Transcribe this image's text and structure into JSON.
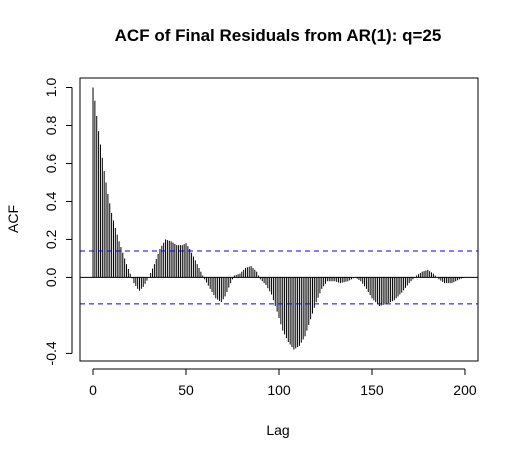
{
  "chart_data": {
    "type": "bar",
    "title": "ACF of Final Residuals from AR(1): q=25",
    "xlabel": "Lag",
    "ylabel": "ACF",
    "xlim": [
      -7,
      207
    ],
    "ylim": [
      -0.44,
      1.05
    ],
    "x_ticks": [
      0,
      50,
      100,
      150,
      200
    ],
    "y_ticks": [
      -0.4,
      0.0,
      0.2,
      0.4,
      0.6,
      0.8,
      1.0
    ],
    "y_tick_labels": [
      "-0.4",
      "0.0",
      "0.2",
      "0.4",
      "0.6",
      "0.8",
      "1.0"
    ],
    "confidence_band": 0.139,
    "confidence_color": "#0000ff",
    "bar_color": "#000000",
    "zero_line": true,
    "grid": false,
    "lag_max": 200,
    "acf_shape": [
      [
        0,
        1.0
      ],
      [
        1,
        0.93
      ],
      [
        2,
        0.85
      ],
      [
        3,
        0.77
      ],
      [
        4,
        0.7
      ],
      [
        5,
        0.63
      ],
      [
        6,
        0.56
      ],
      [
        7,
        0.5
      ],
      [
        8,
        0.44
      ],
      [
        9,
        0.39
      ],
      [
        10,
        0.34
      ],
      [
        12,
        0.26
      ],
      [
        14,
        0.19
      ],
      [
        16,
        0.13
      ],
      [
        18,
        0.07
      ],
      [
        20,
        0.02
      ],
      [
        22,
        -0.03
      ],
      [
        24,
        -0.06
      ],
      [
        25,
        -0.07
      ],
      [
        27,
        -0.05
      ],
      [
        30,
        0.0
      ],
      [
        33,
        0.07
      ],
      [
        36,
        0.15
      ],
      [
        39,
        0.2
      ],
      [
        42,
        0.19
      ],
      [
        45,
        0.17
      ],
      [
        48,
        0.17
      ],
      [
        50,
        0.18
      ],
      [
        52,
        0.15
      ],
      [
        55,
        0.09
      ],
      [
        58,
        0.03
      ],
      [
        60,
        -0.01
      ],
      [
        63,
        -0.06
      ],
      [
        66,
        -0.11
      ],
      [
        69,
        -0.13
      ],
      [
        71,
        -0.1
      ],
      [
        74,
        -0.03
      ],
      [
        76,
        0.01
      ],
      [
        79,
        0.02
      ],
      [
        82,
        0.05
      ],
      [
        85,
        0.06
      ],
      [
        88,
        0.03
      ],
      [
        90,
        -0.01
      ],
      [
        93,
        -0.04
      ],
      [
        96,
        -0.09
      ],
      [
        99,
        -0.18
      ],
      [
        102,
        -0.28
      ],
      [
        105,
        -0.34
      ],
      [
        108,
        -0.38
      ],
      [
        111,
        -0.36
      ],
      [
        114,
        -0.31
      ],
      [
        117,
        -0.22
      ],
      [
        120,
        -0.13
      ],
      [
        123,
        -0.06
      ],
      [
        126,
        -0.02
      ],
      [
        130,
        -0.02
      ],
      [
        133,
        -0.03
      ],
      [
        137,
        -0.02
      ],
      [
        141,
        0.0
      ],
      [
        144,
        -0.02
      ],
      [
        147,
        -0.06
      ],
      [
        150,
        -0.11
      ],
      [
        154,
        -0.15
      ],
      [
        158,
        -0.14
      ],
      [
        162,
        -0.12
      ],
      [
        166,
        -0.08
      ],
      [
        170,
        -0.03
      ],
      [
        174,
        0.01
      ],
      [
        177,
        0.03
      ],
      [
        180,
        0.04
      ],
      [
        183,
        0.02
      ],
      [
        186,
        -0.01
      ],
      [
        189,
        -0.03
      ],
      [
        193,
        -0.03
      ],
      [
        197,
        -0.01
      ],
      [
        200,
        0.0
      ]
    ]
  }
}
